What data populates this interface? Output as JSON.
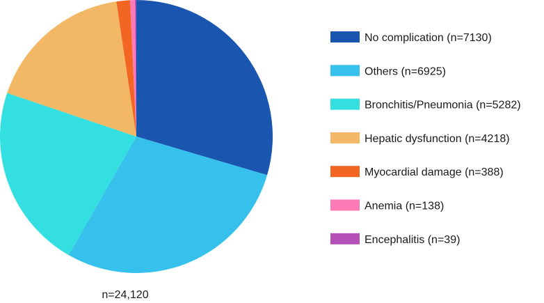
{
  "chart_data": {
    "type": "pie",
    "title": "",
    "total_label": "n=24,120",
    "slices": [
      {
        "label": "No complication (n=7130)",
        "value": 7130,
        "color": "#1a56b0"
      },
      {
        "label": "Others (n=6925)",
        "value": 6925,
        "color": "#36c1ec"
      },
      {
        "label": "Bronchitis/Pneumonia (n=5282)",
        "value": 5282,
        "color": "#33dfe0"
      },
      {
        "label": "Hepatic dysfunction (n=4218)",
        "value": 4218,
        "color": "#f2b865"
      },
      {
        "label": "Myocardial damage (n=388)",
        "value": 388,
        "color": "#f26522"
      },
      {
        "label": "Anemia (n=138)",
        "value": 138,
        "color": "#ff7bb6"
      },
      {
        "label": "Encephalitis (n=39)",
        "value": 39,
        "color": "#b54fb5"
      }
    ],
    "legend_position": "right"
  }
}
